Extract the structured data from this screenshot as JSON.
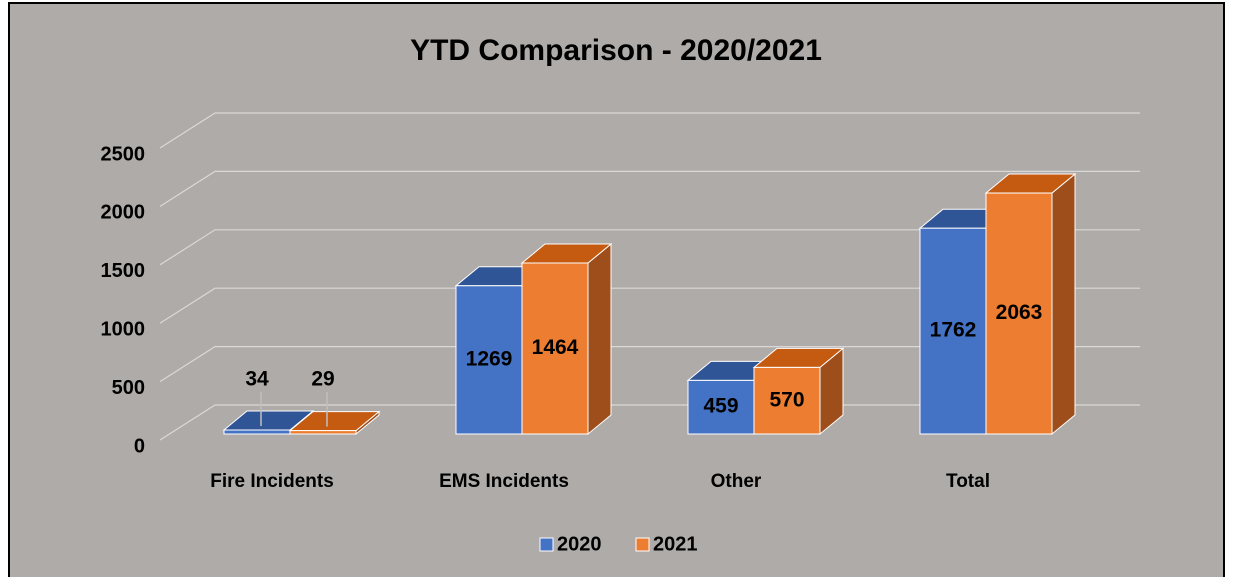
{
  "chart_data": {
    "type": "bar",
    "title": "YTD Comparison - 2020/2021",
    "categories": [
      "Fire Incidents",
      "EMS Incidents",
      "Other",
      "Total"
    ],
    "series": [
      {
        "name": "2020",
        "color": "#4472c4",
        "values": [
          34,
          1269,
          459,
          1762
        ]
      },
      {
        "name": "2021",
        "color": "#ed7d31",
        "values": [
          29,
          1464,
          570,
          2063
        ]
      }
    ],
    "ylim": [
      0,
      2500
    ],
    "yticks": [
      0,
      500,
      1000,
      1500,
      2000,
      2500
    ],
    "grid": true,
    "legend": "bottom"
  }
}
